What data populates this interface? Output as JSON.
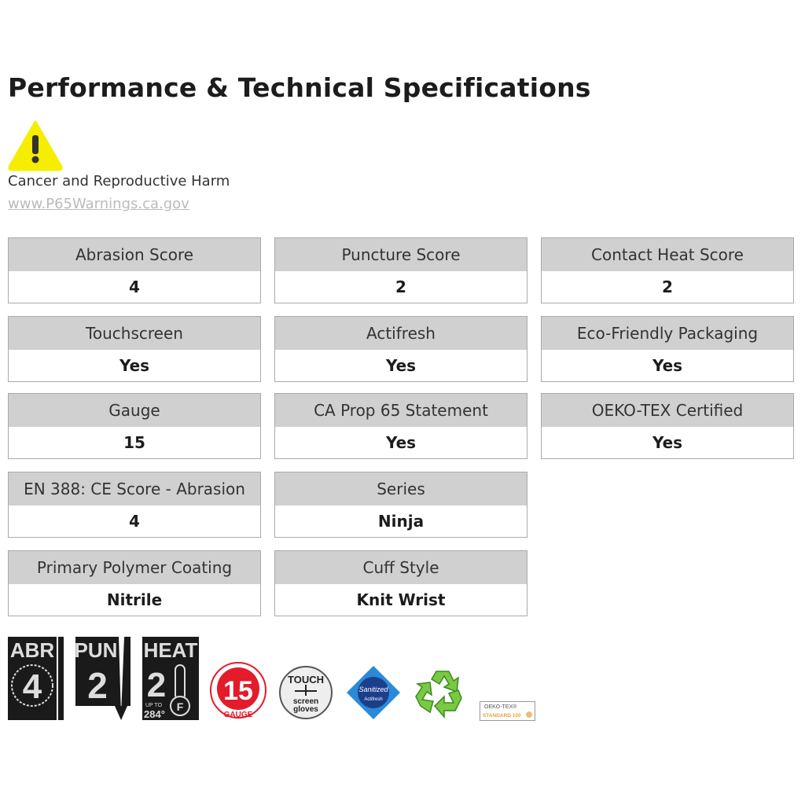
{
  "title": "Performance & Technical Specifications",
  "warning": {
    "icon": "warning-triangle-icon",
    "text": "Cancer and Reproductive Harm",
    "link": "www.P65Warnings.ca.gov",
    "color": "#f5ee00"
  },
  "specs": [
    {
      "label": "Abrasion Score",
      "value": "4"
    },
    {
      "label": "Puncture Score",
      "value": "2"
    },
    {
      "label": "Contact Heat Score",
      "value": "2"
    },
    {
      "label": "Touchscreen",
      "value": "Yes"
    },
    {
      "label": "Actifresh",
      "value": "Yes"
    },
    {
      "label": "Eco-Friendly Packaging",
      "value": "Yes"
    },
    {
      "label": "Gauge",
      "value": "15"
    },
    {
      "label": "CA Prop 65 Statement",
      "value": "Yes"
    },
    {
      "label": "OEKO-TEX Certified",
      "value": "Yes"
    },
    {
      "label": "EN 388: CE Score - Abrasion",
      "value": "4"
    },
    {
      "label": "Series",
      "value": "Ninja"
    },
    {
      "label": "Primary Polymer Coating",
      "value": "Nitrile"
    },
    {
      "label": "Cuff Style",
      "value": "Knit Wrist"
    }
  ],
  "badges": {
    "abr": {
      "label": "ABR",
      "value": "4"
    },
    "pun": {
      "label": "PUN",
      "value": "2"
    },
    "heat": {
      "label": "HEAT",
      "value": "2",
      "sub1": "UP TO",
      "sub2": "284°",
      "unit": "F"
    },
    "gauge": {
      "value": "15",
      "label": "GAUGE"
    },
    "touch": {
      "l1": "TOUCH",
      "l2": "screen",
      "l3": "gloves"
    },
    "sanitized": {
      "l1": "Sanitized",
      "l2": "Actifresh"
    },
    "recycle": {
      "icon": "recycle-icon"
    },
    "oeko": {
      "l1": "OEKO-TEX®",
      "l2": "STANDARD 100"
    }
  }
}
